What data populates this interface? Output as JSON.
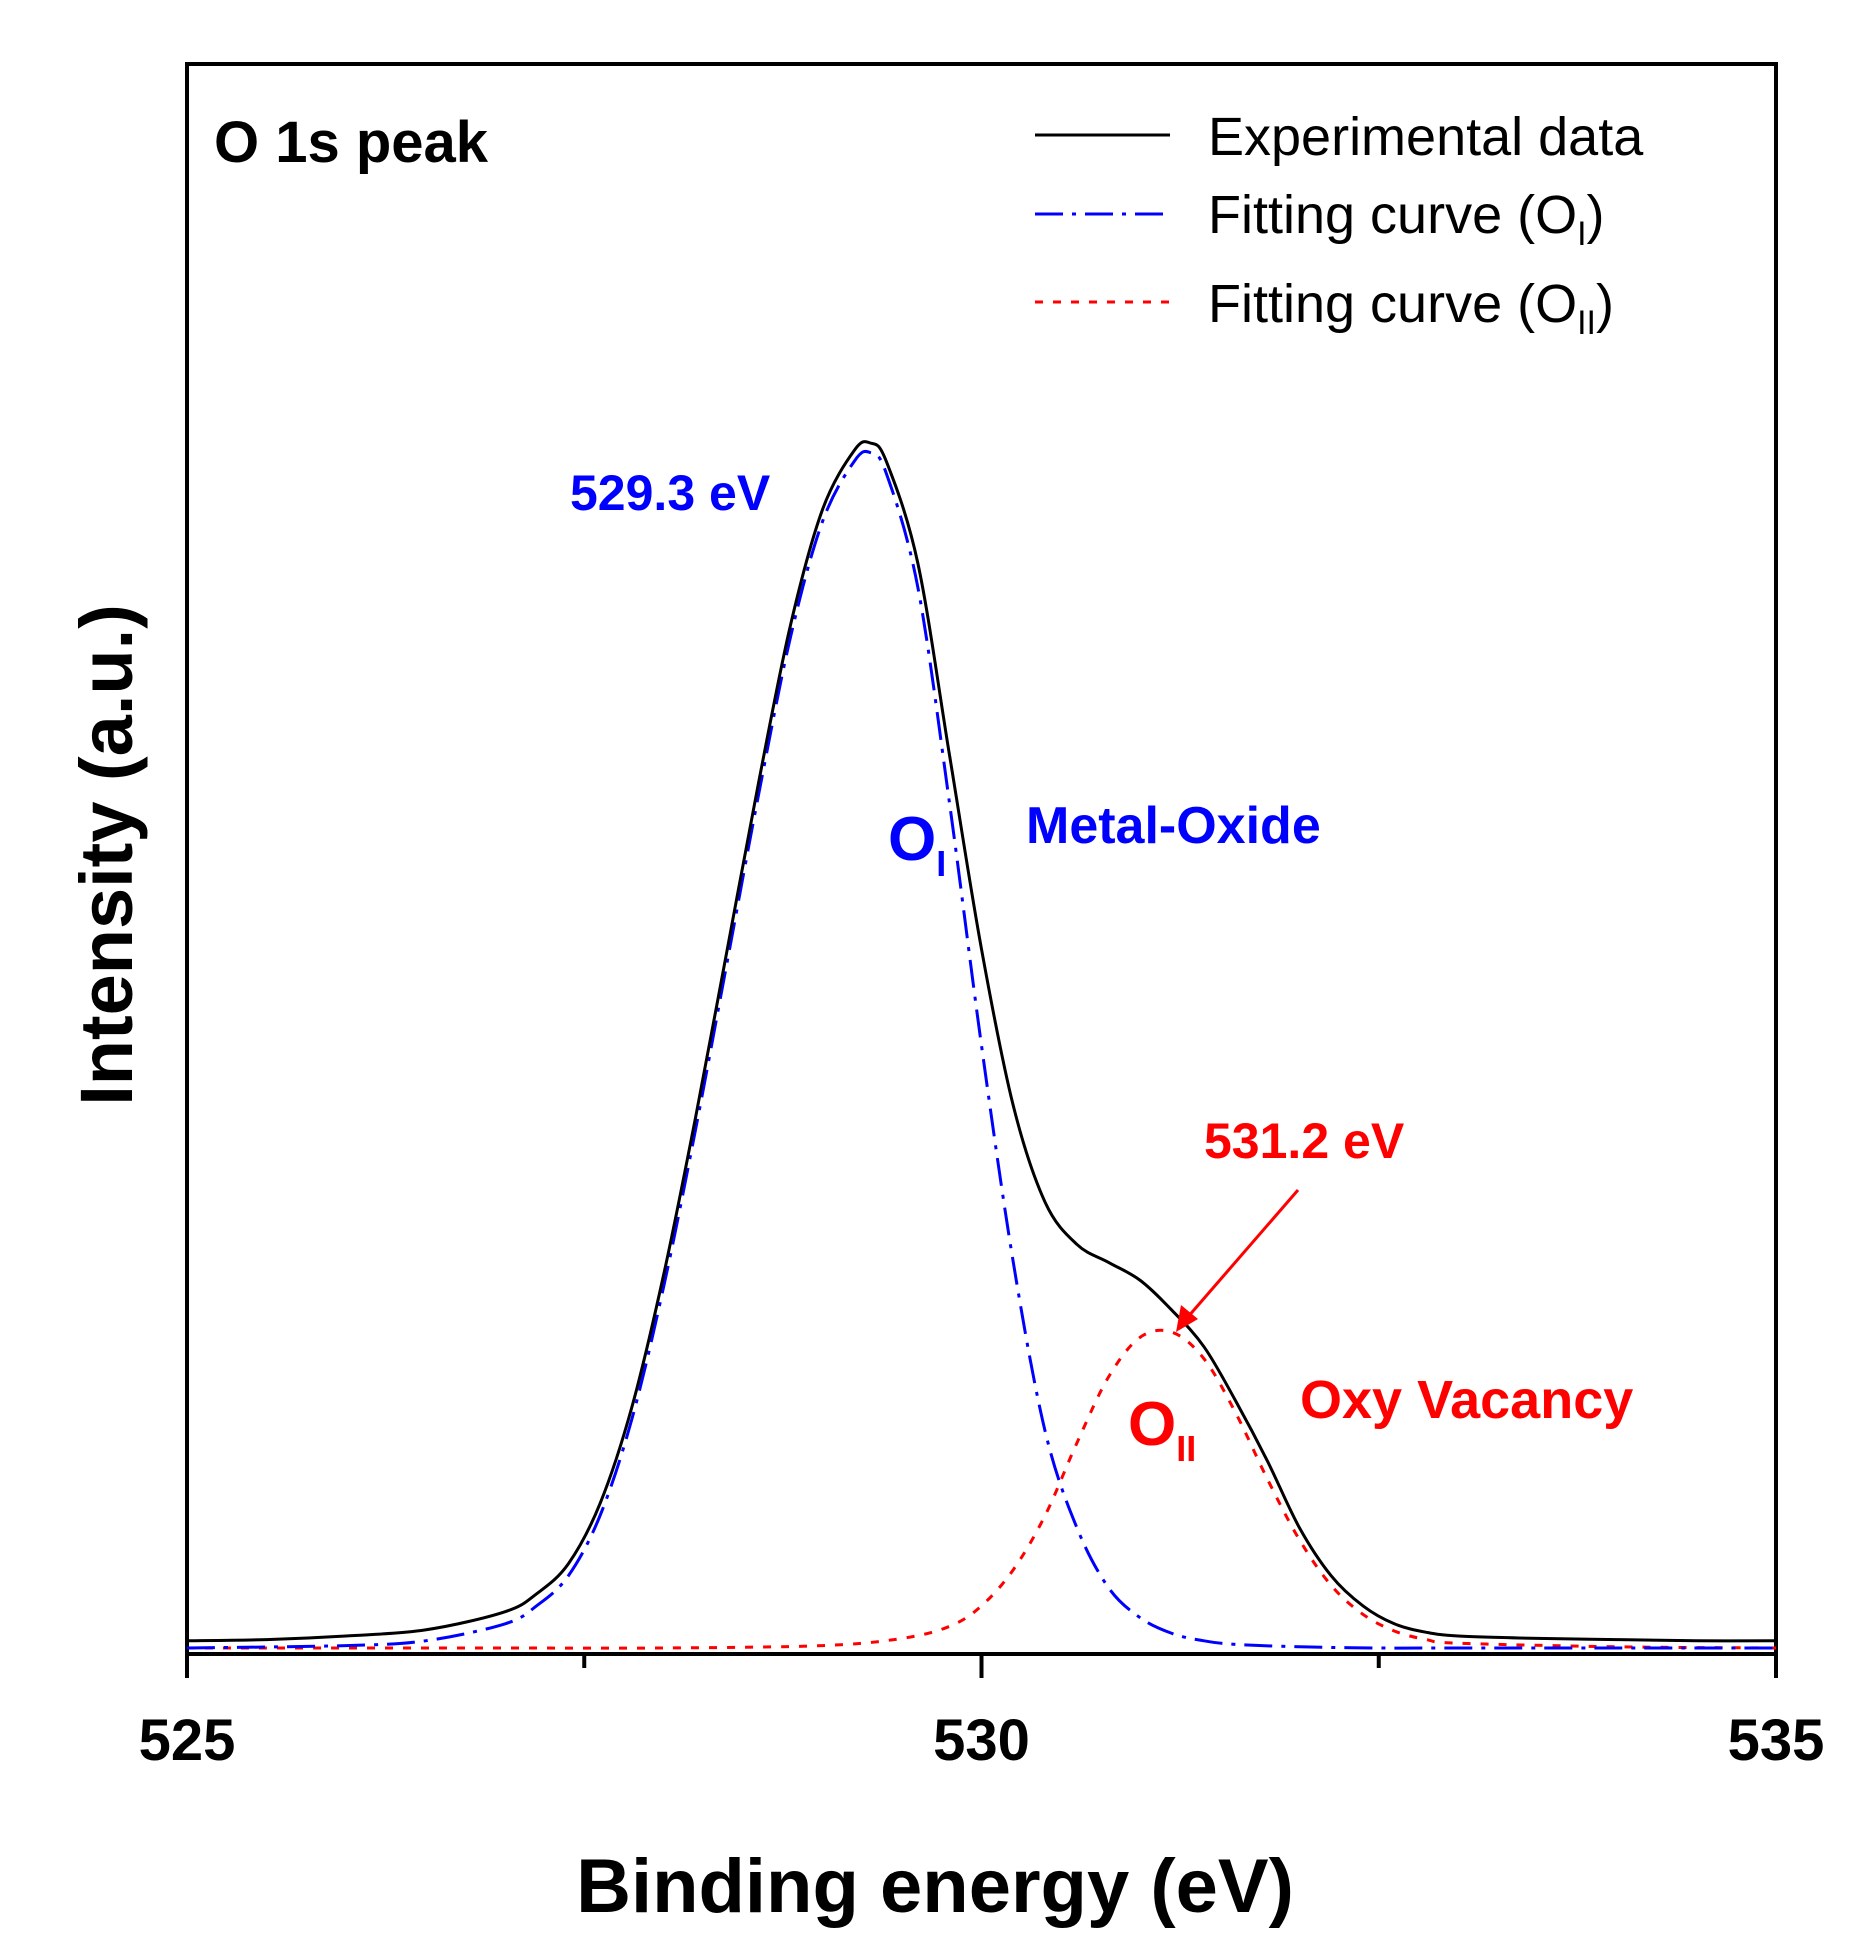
{
  "chart_data": {
    "type": "line",
    "title": "O 1s peak",
    "xlabel": "Binding energy (eV)",
    "ylabel": "Intensity (a.u.)",
    "xlim": [
      525,
      535
    ],
    "ylim": [
      0,
      1.04
    ],
    "x_ticks": [
      525,
      530,
      535
    ],
    "x_ticks_minor": [
      527.5,
      532.5
    ],
    "y_ticks": [],
    "grid": false,
    "legend_position": "top-right",
    "series": [
      {
        "name": "Experimental data",
        "style": "solid",
        "color": "#000000",
        "x": [
          525.0,
          525.5,
          526.0,
          526.5,
          527.0,
          527.2,
          527.4,
          527.6,
          527.8,
          528.0,
          528.2,
          528.4,
          528.6,
          528.8,
          529.0,
          529.2,
          529.3,
          529.4,
          529.6,
          529.8,
          530.0,
          530.2,
          530.4,
          530.6,
          530.8,
          531.0,
          531.2,
          531.4,
          531.6,
          531.8,
          532.0,
          532.2,
          532.4,
          532.6,
          532.8,
          533.0,
          533.5,
          534.0,
          534.5,
          535.0
        ],
        "values": [
          0.006,
          0.007,
          0.01,
          0.015,
          0.03,
          0.045,
          0.07,
          0.12,
          0.2,
          0.31,
          0.44,
          0.58,
          0.72,
          0.85,
          0.945,
          0.994,
          1.0,
          0.985,
          0.9,
          0.74,
          0.58,
          0.45,
          0.37,
          0.335,
          0.32,
          0.305,
          0.28,
          0.25,
          0.205,
          0.155,
          0.1,
          0.06,
          0.035,
          0.02,
          0.013,
          0.01,
          0.008,
          0.007,
          0.006,
          0.006
        ]
      },
      {
        "name": "Fitting curve (O_I)",
        "style": "dash-dot",
        "color": "#0000ff",
        "x": [
          525.0,
          526.0,
          526.5,
          527.0,
          527.2,
          527.4,
          527.6,
          527.8,
          528.0,
          528.2,
          528.4,
          528.6,
          528.8,
          529.0,
          529.2,
          529.3,
          529.4,
          529.6,
          529.8,
          530.0,
          530.2,
          530.4,
          530.6,
          530.8,
          531.0,
          531.2,
          531.4,
          531.6,
          532.0,
          532.5,
          533.0,
          534.0,
          535.0
        ],
        "values": [
          0.0,
          0.002,
          0.006,
          0.02,
          0.035,
          0.06,
          0.11,
          0.19,
          0.3,
          0.43,
          0.57,
          0.71,
          0.84,
          0.935,
          0.985,
          0.992,
          0.975,
          0.88,
          0.7,
          0.5,
          0.32,
          0.18,
          0.1,
          0.05,
          0.025,
          0.012,
          0.006,
          0.003,
          0.001,
          0.0,
          0.0,
          0.0,
          0.0
        ]
      },
      {
        "name": "Fitting curve (O_II)",
        "style": "dotted",
        "color": "#ff0000",
        "x": [
          525.0,
          526.0,
          527.0,
          528.0,
          529.0,
          529.5,
          529.8,
          530.0,
          530.2,
          530.4,
          530.6,
          530.8,
          531.0,
          531.2,
          531.4,
          531.6,
          531.8,
          532.0,
          532.2,
          532.4,
          532.6,
          532.8,
          533.0,
          534.0,
          535.0
        ],
        "values": [
          0.0,
          0.0,
          0.0,
          0.0,
          0.002,
          0.008,
          0.018,
          0.035,
          0.065,
          0.11,
          0.17,
          0.225,
          0.258,
          0.262,
          0.24,
          0.195,
          0.14,
          0.09,
          0.052,
          0.028,
          0.014,
          0.007,
          0.004,
          0.001,
          0.0
        ]
      }
    ],
    "legend": [
      {
        "base": "Experimental data",
        "sub": ""
      },
      {
        "base": "Fitting curve (O",
        "sub": "I",
        "suffix": ")"
      },
      {
        "base": "Fitting curve (O",
        "sub": "II",
        "suffix": ")"
      }
    ],
    "annotations": {
      "peak1_energy": "529.3 eV",
      "peak1_symbol": "O",
      "peak1_symbol_sub": "I",
      "peak1_label": "Metal-Oxide",
      "peak2_energy": "531.2 eV",
      "peak2_symbol": "O",
      "peak2_symbol_sub": "II",
      "peak2_label": "Oxy Vacancy"
    },
    "colors": {
      "experimental": "#000000",
      "fit_oi": "#0000ff",
      "fit_oii": "#ff0000",
      "axes": "#000000"
    }
  }
}
